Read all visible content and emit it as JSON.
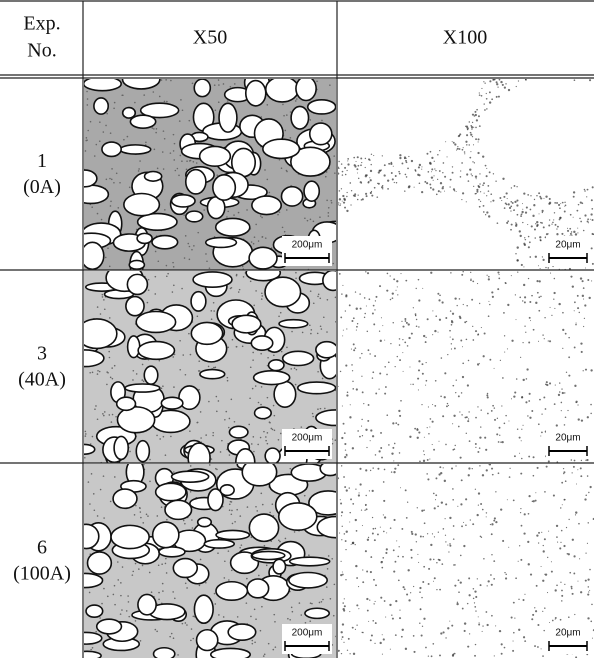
{
  "table": {
    "header": {
      "exp": [
        "Exp.",
        "No."
      ],
      "cols": [
        "X50",
        "X100"
      ]
    },
    "rows": [
      {
        "exp": [
          "1",
          "(0A)"
        ],
        "scales": [
          "200μm",
          "20μm"
        ]
      },
      {
        "exp": [
          "3",
          "(40A)"
        ],
        "scales": [
          "200μm",
          "20μm"
        ]
      },
      {
        "exp": [
          "6",
          "(100A)"
        ],
        "scales": [
          "200μm",
          "20μm"
        ]
      }
    ]
  }
}
